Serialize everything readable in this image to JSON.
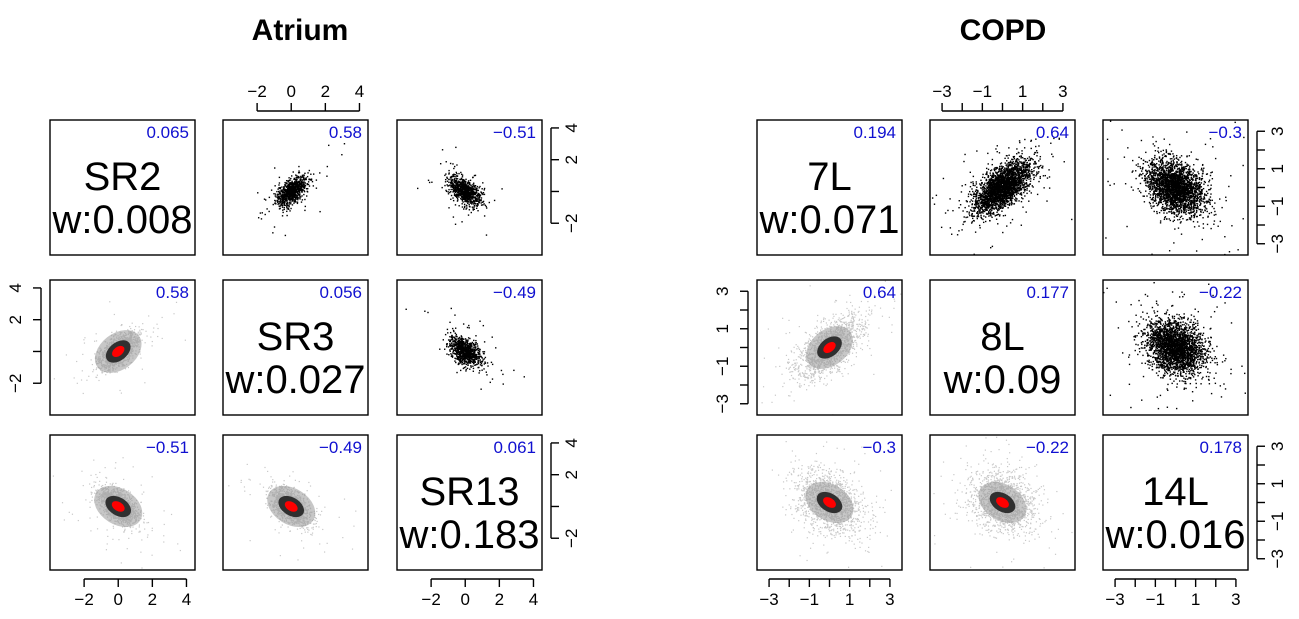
{
  "chart_data": [
    {
      "type": "scatter",
      "title": "Atrium",
      "variables": [
        {
          "name": "SR2",
          "weight_label": "w:0.008",
          "variance": "0.065"
        },
        {
          "name": "SR3",
          "weight_label": "w:0.027",
          "variance": "0.056"
        },
        {
          "name": "SR13",
          "weight_label": "w:0.183",
          "variance": "0.061"
        }
      ],
      "correlations": [
        [
          "",
          "0.58",
          "−0.51"
        ],
        [
          "0.58",
          "",
          "−0.49"
        ],
        [
          "−0.51",
          "−0.49",
          ""
        ]
      ],
      "correlation_values": [
        [
          null,
          0.58,
          -0.51
        ],
        [
          0.58,
          null,
          -0.49
        ],
        [
          -0.51,
          -0.49,
          null
        ]
      ],
      "axis_range": [
        -4,
        4.5
      ],
      "ticks": {
        "top": {
          "values": [
            -2,
            0,
            2,
            4
          ],
          "labels": [
            "−2",
            "0",
            "2",
            "4"
          ]
        },
        "bottom": {
          "values": [
            -2,
            0,
            2,
            4
          ],
          "labels": [
            "−2",
            "0",
            "2",
            "4"
          ]
        },
        "left": {
          "values": [
            -2,
            0,
            2,
            4
          ],
          "labels": [
            "−2",
            "0",
            "2",
            "4"
          ],
          "labeled": [
            true,
            false,
            true,
            true
          ]
        },
        "right": {
          "values": [
            -2,
            0,
            2,
            4
          ],
          "labels": [
            "−2",
            "0",
            "2",
            "4"
          ],
          "labeled": [
            true,
            false,
            true,
            true
          ]
        }
      },
      "upper_panels": "black scatter points",
      "lower_panels": "smoothed density, grey to red",
      "grid": false
    },
    {
      "type": "scatter",
      "title": "COPD",
      "variables": [
        {
          "name": "7L",
          "weight_label": "w:0.071",
          "variance": "0.194"
        },
        {
          "name": "8L",
          "weight_label": "w:0.09",
          "variance": "0.177"
        },
        {
          "name": "14L",
          "weight_label": "w:0.016",
          "variance": "0.178"
        }
      ],
      "correlations": [
        [
          "",
          "0.64",
          "−0.3"
        ],
        [
          "0.64",
          "",
          "−0.22"
        ],
        [
          "−0.3",
          "−0.22",
          ""
        ]
      ],
      "correlation_values": [
        [
          null,
          0.64,
          -0.3
        ],
        [
          0.64,
          null,
          -0.22
        ],
        [
          -0.3,
          -0.22,
          null
        ]
      ],
      "axis_range": [
        -3.6,
        3.6
      ],
      "ticks": {
        "top": {
          "values": [
            -3,
            -2,
            -1,
            0,
            1,
            2,
            3
          ],
          "labels": [
            "−3",
            "",
            "−1",
            "",
            "1",
            "",
            "3"
          ]
        },
        "bottom": {
          "values": [
            -3,
            -2,
            -1,
            0,
            1,
            2,
            3
          ],
          "labels": [
            "−3",
            "",
            "−1",
            "",
            "1",
            "",
            "3"
          ]
        },
        "left": {
          "values": [
            -3,
            -2,
            -1,
            0,
            1,
            2,
            3
          ],
          "labels": [
            "−3",
            "",
            "−1",
            "",
            "1",
            "",
            "3"
          ]
        },
        "right": {
          "values": [
            -3,
            -2,
            -1,
            0,
            1,
            2,
            3
          ],
          "labels": [
            "−3",
            "",
            "−1",
            "",
            "1",
            "",
            "3"
          ]
        }
      },
      "upper_panels": "black scatter points",
      "lower_panels": "smoothed density, grey to red",
      "grid": false
    }
  ],
  "colors": {
    "correlation_text": "#1010d0",
    "points": "#000000",
    "density_low": "#c8c8c8",
    "density_mid": "#303030",
    "density_high": "#ff0000"
  }
}
